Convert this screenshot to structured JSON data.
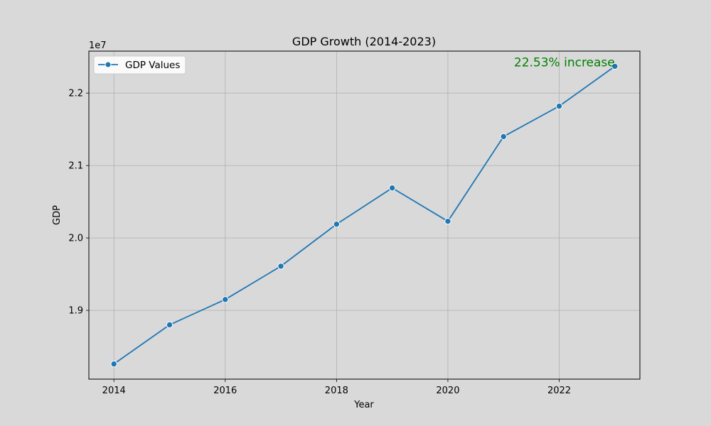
{
  "chart_data": {
    "type": "line",
    "title": "GDP Growth (2014-2023)",
    "xlabel": "Year",
    "ylabel": "GDP",
    "y_offset_label": "1e7",
    "x": [
      2014,
      2015,
      2016,
      2017,
      2018,
      2019,
      2020,
      2021,
      2022,
      2023
    ],
    "series": [
      {
        "name": "GDP Values",
        "color": "#1f77b4",
        "values": [
          18260000,
          18800000,
          19150000,
          19610000,
          20190000,
          20690000,
          20230000,
          21400000,
          21820000,
          22370000
        ]
      }
    ],
    "xlim": [
      2013.55,
      2023.45
    ],
    "ylim": [
      18050000,
      22580000
    ],
    "x_ticks": [
      2014,
      2016,
      2018,
      2020,
      2022
    ],
    "x_tick_labels": [
      "2014",
      "2016",
      "2018",
      "2020",
      "2022"
    ],
    "y_ticks": [
      19000000,
      20000000,
      21000000,
      22000000
    ],
    "y_tick_labels": [
      "1.9",
      "2.0",
      "2.1",
      "2.2"
    ],
    "grid": true,
    "legend_position": "upper-left",
    "annotation": {
      "text": "22.53% increase",
      "x": 2023,
      "y": 22370000,
      "color": "#008000"
    }
  }
}
